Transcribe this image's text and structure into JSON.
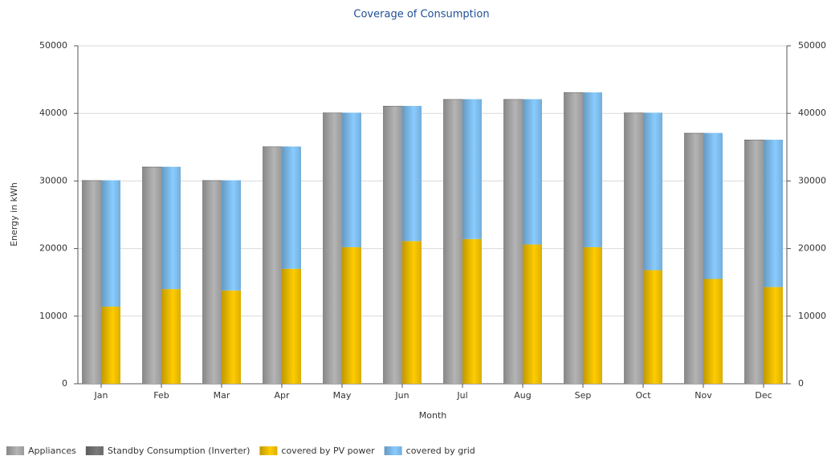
{
  "chart_data": {
    "type": "bar",
    "title": "Coverage of Consumption",
    "xlabel": "Month",
    "ylabel": "Energy in kWh",
    "categories": [
      "Jan",
      "Feb",
      "Mar",
      "Apr",
      "May",
      "Jun",
      "Jul",
      "Aug",
      "Sep",
      "Oct",
      "Nov",
      "Dec"
    ],
    "series": [
      {
        "name": "Appliances",
        "color": "#b4b4b4",
        "stack": 0,
        "values": [
          30000,
          32000,
          30000,
          35000,
          40000,
          41000,
          42000,
          42000,
          43000,
          40000,
          37000,
          36000
        ]
      },
      {
        "name": "Standby Consumption (Inverter)",
        "color": "#7a7a7a",
        "stack": 0,
        "values": [
          100,
          100,
          100,
          100,
          100,
          100,
          100,
          100,
          100,
          100,
          100,
          100
        ]
      },
      {
        "name": "covered by PV power",
        "color": "#ffcc00",
        "stack": 1,
        "values": [
          11400,
          14000,
          13800,
          17000,
          20200,
          21100,
          21400,
          20600,
          20200,
          16800,
          15500,
          14300
        ]
      },
      {
        "name": "covered by grid",
        "color": "#88ccff",
        "stack": 1,
        "values": [
          18700,
          18100,
          16300,
          18100,
          19900,
          20000,
          20700,
          21500,
          22900,
          23300,
          21600,
          21800
        ]
      }
    ],
    "ylim": [
      0,
      50000
    ],
    "yticks": [
      0,
      10000,
      20000,
      30000,
      40000,
      50000
    ],
    "y2lim": [
      0,
      50000
    ],
    "y2ticks": [
      0,
      10000,
      20000,
      30000,
      40000,
      50000
    ],
    "grid": true,
    "legend": "bottom"
  }
}
